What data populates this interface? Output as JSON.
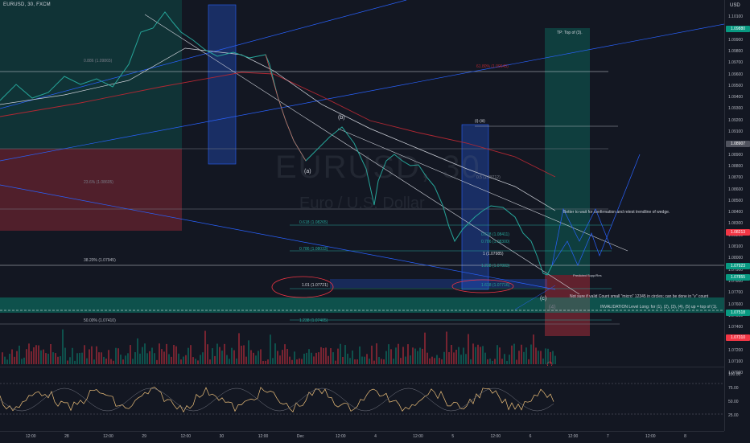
{
  "header": {
    "symbol": "EURUSD, 30, FXCM"
  },
  "watermark": {
    "ticker": "EURUSD, 30",
    "name": "Euro / U.S. Dollar"
  },
  "price_scale": {
    "currency": "USD",
    "ticks": [
      "1.10100",
      "1.10000",
      "1.09900",
      "1.09800",
      "1.09700",
      "1.09600",
      "1.09500",
      "1.09400",
      "1.09300",
      "1.09200",
      "1.09100",
      "1.09000",
      "1.08900",
      "1.08800",
      "1.08700",
      "1.08600",
      "1.08500",
      "1.08400",
      "1.08300",
      "1.08200",
      "1.08100",
      "1.08000",
      "1.07900",
      "1.07800",
      "1.07700",
      "1.07600",
      "1.07500",
      "1.07400",
      "1.07300",
      "1.07200",
      "1.07100",
      "1.07000"
    ],
    "badges": [
      {
        "text": "1.09880",
        "color": "#089981"
      },
      {
        "text": "1.08907",
        "color": "#50535e"
      },
      {
        "text": "1.08213",
        "color": "#f23645"
      },
      {
        "text": "1.07923",
        "color": "#089981"
      },
      {
        "text": "1.07855",
        "color": "#089981"
      },
      {
        "text": "1.07518",
        "color": "#089981"
      },
      {
        "text": "1.07310",
        "color": "#f23645"
      }
    ]
  },
  "osc_scale": {
    "ticks": [
      "100.00",
      "75.00",
      "50.00",
      "25.00"
    ]
  },
  "time_axis": {
    "labels": [
      "12:00",
      "28",
      "12:00",
      "29",
      "12:00",
      "30",
      "12:00",
      "Dec",
      "12:00",
      "4",
      "12:00",
      "5",
      "12:00",
      "6",
      "12:00",
      "7",
      "12:00",
      "8"
    ]
  },
  "annotations": {
    "tp": "TP: Top of (3).",
    "wave_a": "(a)",
    "wave_b": "(b)",
    "wave_c": "(c)",
    "wave_4": "(4)",
    "wave_5": "5",
    "wave_iii": "(i)-(iii)",
    "wait_note": "Better to wait for confirmation and retest trendline of wedge.",
    "count_note": "Not sure if valid Count small \"micro\" 12345 in circles; can be done in \"v\" count",
    "invalidation": "INVALIDATION Level Long: for (1), (2), (3), (4), (5) up = top of (1).",
    "supp_res": "Predicted Supp/Res",
    "fib_0618": "0.618 (1.08265)",
    "fib_0786": "0.786 (1.08033)",
    "fib_1": "1 (1.07985)",
    "fib_1238": "1.238 (1.07883)",
    "fib_101": "1.01 (1.07721)",
    "fib_1618": "1.618 (1.07716)",
    "fib_1238b": "1.238 (1.07405)",
    "fib_382": "38.20% (1.07945)",
    "fib_50": "50.00% (1.07410)",
    "fib_0886": "0.886 (1.09865)",
    "fib_0618b": "0.618 (1.08513)",
    "fib_small": "0.618 (1.08411)",
    "fib_small2": "0.786 (1.08300)",
    "fib_1b": "1 (1.08000)",
    "fib_1238c": "1.238 (1.07883)",
    "fib_top": "0.5 (1.08712)",
    "fib_mid": "23.6% (1.08605)",
    "fib_red": "61.80% (1.09645)"
  }
}
